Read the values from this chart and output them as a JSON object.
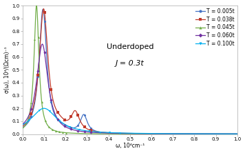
{
  "title_line1": "Underdoped",
  "title_line2": "J = 0.3t",
  "xlabel": "ω, 10⁴cm⁻¹",
  "ylabel": "σ(ω), 10⁴/(Ωcm)⁻¹",
  "xlim": [
    0,
    1
  ],
  "ylim": [
    0,
    1
  ],
  "xticks": [
    0,
    0.1,
    0.2,
    0.3,
    0.4,
    0.5,
    0.6,
    0.7,
    0.8,
    0.9,
    1
  ],
  "yticks": [
    0,
    0.1,
    0.2,
    0.3,
    0.4,
    0.5,
    0.6,
    0.7,
    0.8,
    0.9,
    1
  ],
  "series": [
    {
      "label": "T = 0.005t",
      "color": "#4472C4"
    },
    {
      "label": "T = 0.038t",
      "color": "#C0392B"
    },
    {
      "label": "T = 0.045t",
      "color": "#70AD47"
    },
    {
      "label": "T = 0.060t",
      "color": "#7030A0"
    },
    {
      "label": "T = 0.100t",
      "color": "#00B0F0"
    }
  ],
  "background_color": "#FFFFFF",
  "legend_fontsize": 5.5,
  "axis_fontsize": 5.5,
  "tick_fontsize": 5.0,
  "annotation_fontsize": 8
}
